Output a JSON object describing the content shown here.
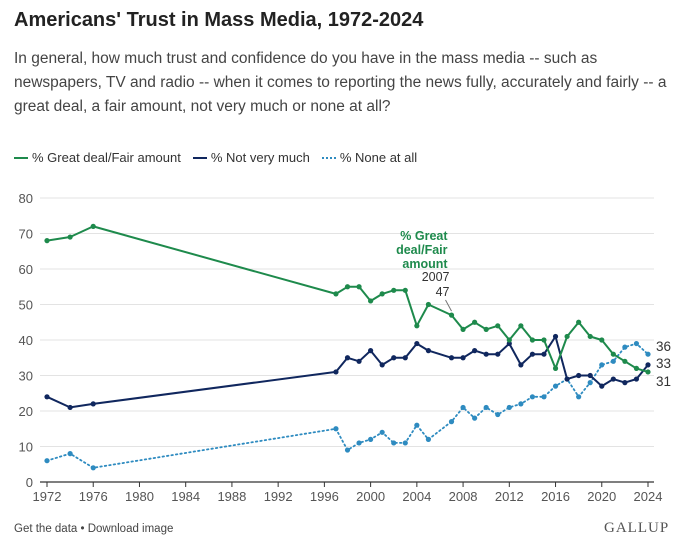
{
  "header": {
    "title": "Americans' Trust in Mass Media, 1972-2024",
    "subtitle": "In general, how much trust and confidence do you have in the mass media -- such as newspapers, TV and radio -- when it comes to reporting the news fully, accurately and fairly -- a great deal, a fair amount, not very much or none at all?"
  },
  "footer": {
    "links": "Get the data • Download image",
    "brand": "GALLUP"
  },
  "chart_data": {
    "type": "line",
    "xlim": [
      1972,
      2024
    ],
    "ylim": [
      0,
      80
    ],
    "xticks": [
      1972,
      1976,
      1980,
      1984,
      1988,
      1992,
      1996,
      2000,
      2004,
      2008,
      2012,
      2016,
      2020,
      2024
    ],
    "yticks": [
      0,
      10,
      20,
      30,
      40,
      50,
      60,
      70,
      80
    ],
    "grid": true,
    "legend_position": "top-left",
    "annotation": {
      "label_lines": [
        "% Great",
        "deal/Fair",
        "amount"
      ],
      "year": "2007",
      "value": "47",
      "x": 2007,
      "y": 47
    },
    "series": [
      {
        "name": "% Great deal/Fair amount",
        "color": "#1e8a4c",
        "style": "solid",
        "end_label": "31",
        "x": [
          1972,
          1974,
          1976,
          1997,
          1998,
          1999,
          2000,
          2001,
          2002,
          2003,
          2004,
          2005,
          2007,
          2008,
          2009,
          2010,
          2011,
          2012,
          2013,
          2014,
          2015,
          2016,
          2017,
          2018,
          2019,
          2020,
          2021,
          2022,
          2023,
          2024
        ],
        "values": [
          68,
          69,
          72,
          53,
          55,
          55,
          51,
          53,
          54,
          54,
          44,
          50,
          47,
          43,
          45,
          43,
          44,
          40,
          44,
          40,
          40,
          32,
          41,
          45,
          41,
          40,
          36,
          34,
          32,
          31
        ]
      },
      {
        "name": "% Not very much",
        "color": "#10275e",
        "style": "solid",
        "end_label": "33",
        "x": [
          1972,
          1974,
          1976,
          1997,
          1998,
          1999,
          2000,
          2001,
          2002,
          2003,
          2004,
          2005,
          2007,
          2008,
          2009,
          2010,
          2011,
          2012,
          2013,
          2014,
          2015,
          2016,
          2017,
          2018,
          2019,
          2020,
          2021,
          2022,
          2023,
          2024
        ],
        "values": [
          24,
          21,
          22,
          31,
          35,
          34,
          37,
          33,
          35,
          35,
          39,
          37,
          35,
          35,
          37,
          36,
          36,
          39,
          33,
          36,
          36,
          41,
          29,
          30,
          30,
          27,
          29,
          28,
          29,
          33
        ]
      },
      {
        "name": "% None at all",
        "color": "#2e8bc0",
        "style": "dotted",
        "end_label": "36",
        "x": [
          1972,
          1974,
          1976,
          1997,
          1998,
          1999,
          2000,
          2001,
          2002,
          2003,
          2004,
          2005,
          2007,
          2008,
          2009,
          2010,
          2011,
          2012,
          2013,
          2014,
          2015,
          2016,
          2017,
          2018,
          2019,
          2020,
          2021,
          2022,
          2023,
          2024
        ],
        "values": [
          6,
          8,
          4,
          15,
          9,
          11,
          12,
          14,
          11,
          11,
          16,
          12,
          17,
          21,
          18,
          21,
          19,
          21,
          22,
          24,
          24,
          27,
          29,
          24,
          28,
          33,
          34,
          38,
          39,
          36
        ]
      }
    ]
  }
}
